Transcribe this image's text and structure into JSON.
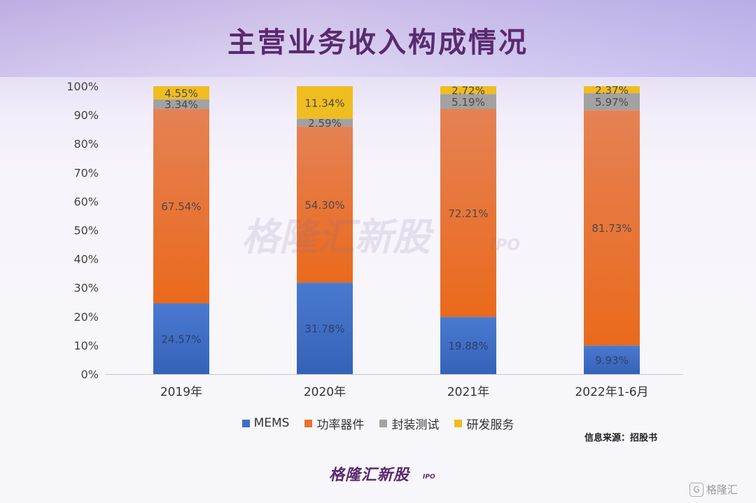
{
  "header": {
    "title": "主营业务收入构成情况"
  },
  "watermark": {
    "center_text": "格隆汇新股",
    "center_sub": "IPO",
    "corner_text": "格隆汇",
    "corner_icon": "G"
  },
  "footer": {
    "source": "信息来源：招股书",
    "logo_text": "格隆汇新股",
    "logo_sub": "IPO"
  },
  "colors": {
    "MEMS": "#3f6fc4",
    "功率器件": "#e8712d",
    "封装测试": "#a2a2a2",
    "研发服务": "#f0bd20",
    "title": "#5a2a6e"
  },
  "chart_data": {
    "type": "bar",
    "stacked": true,
    "title": "主营业务收入构成情况",
    "categories": [
      "2019年",
      "2020年",
      "2021年",
      "2022年1-6月"
    ],
    "series": [
      {
        "name": "MEMS",
        "values": [
          24.57,
          31.78,
          19.88,
          9.93
        ],
        "labels": [
          "24.57%",
          "31.78%",
          "19.88%",
          "9.93%"
        ]
      },
      {
        "name": "功率器件",
        "values": [
          67.54,
          54.3,
          72.21,
          81.73
        ],
        "labels": [
          "67.54%",
          "54.30%",
          "72.21%",
          "81.73%"
        ]
      },
      {
        "name": "封装测试",
        "values": [
          3.34,
          2.59,
          5.19,
          5.97
        ],
        "labels": [
          "3.34%",
          "2.59%",
          "5.19%",
          "5.97%"
        ]
      },
      {
        "name": "研发服务",
        "values": [
          4.55,
          11.34,
          2.72,
          2.37
        ],
        "labels": [
          "4.55%",
          "11.34%",
          "2.72%",
          "2.37%"
        ]
      }
    ],
    "y_ticks": [
      "0%",
      "10%",
      "20%",
      "30%",
      "40%",
      "50%",
      "60%",
      "70%",
      "80%",
      "90%",
      "100%"
    ],
    "ylim": [
      0,
      100
    ],
    "xlabel": "",
    "ylabel": "",
    "grid": false,
    "legend_position": "bottom"
  }
}
